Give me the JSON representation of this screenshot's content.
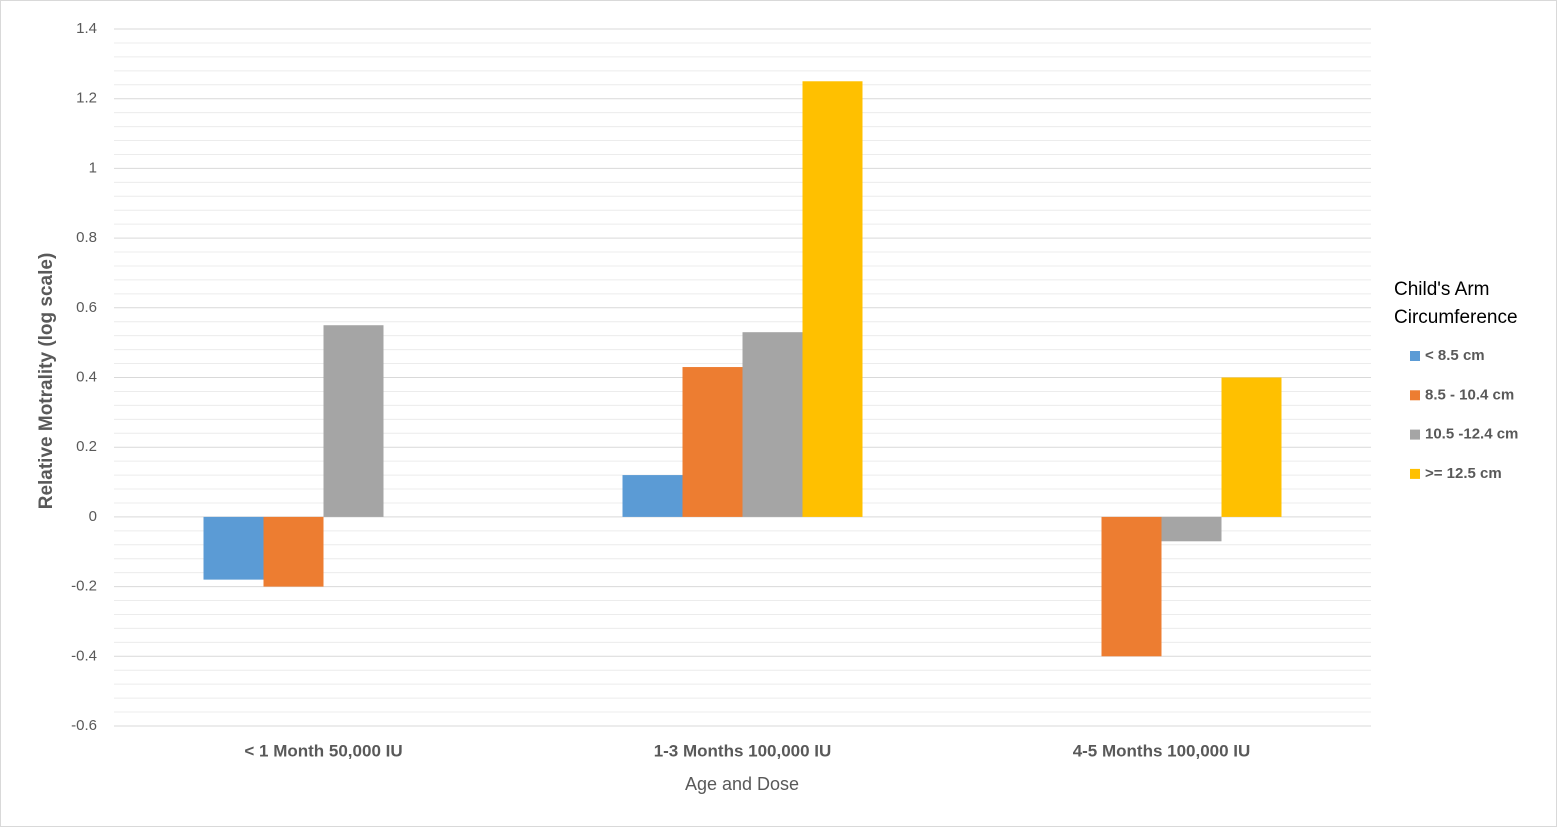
{
  "chart_data": {
    "type": "bar",
    "y_label": "Relative Motrality (log scale)",
    "x_label": "Age and Dose",
    "legend_title": "Child's Arm Circumference",
    "categories": [
      "< 1 Month 50,000 IU",
      "1-3 Months 100,000 IU",
      "4-5 Months 100,000 IU"
    ],
    "series": [
      {
        "name": "< 8.5 cm",
        "color": "#5b9bd5",
        "values": [
          -0.18,
          0.12,
          null
        ]
      },
      {
        "name": "8.5 - 10.4 cm",
        "color": "#ed7d31",
        "values": [
          -0.2,
          0.43,
          -0.4
        ]
      },
      {
        "name": "10.5 -12.4 cm",
        "color": "#a5a5a5",
        "values": [
          0.55,
          0.53,
          -0.07
        ]
      },
      {
        "name": ">= 12.5 cm",
        "color": "#ffc000",
        "values": [
          null,
          1.25,
          0.4
        ]
      }
    ],
    "ylim": [
      -0.6,
      1.4
    ],
    "yticks": [
      1.4,
      1.2,
      1,
      0.8,
      0.6,
      0.4,
      0.2,
      0,
      -0.2,
      -0.4,
      -0.6
    ],
    "grid": true,
    "minor_grid_divisions": 5,
    "legend": "right"
  }
}
